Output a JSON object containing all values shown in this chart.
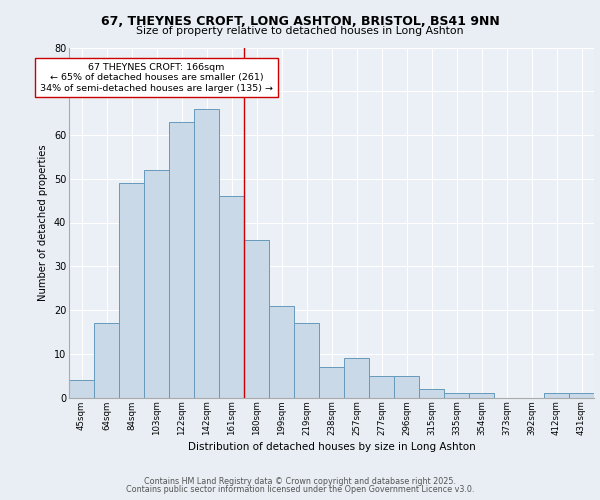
{
  "title1": "67, THEYNES CROFT, LONG ASHTON, BRISTOL, BS41 9NN",
  "title2": "Size of property relative to detached houses in Long Ashton",
  "xlabel": "Distribution of detached houses by size in Long Ashton",
  "ylabel": "Number of detached properties",
  "categories": [
    "45sqm",
    "64sqm",
    "84sqm",
    "103sqm",
    "122sqm",
    "142sqm",
    "161sqm",
    "180sqm",
    "199sqm",
    "219sqm",
    "238sqm",
    "257sqm",
    "277sqm",
    "296sqm",
    "315sqm",
    "335sqm",
    "354sqm",
    "373sqm",
    "392sqm",
    "412sqm",
    "431sqm"
  ],
  "values": [
    4,
    17,
    49,
    52,
    63,
    66,
    46,
    36,
    21,
    17,
    7,
    9,
    5,
    5,
    2,
    1,
    1,
    0,
    0,
    1,
    1
  ],
  "bar_color": "#c9d9e8",
  "bar_edge_color": "#6699bb",
  "property_label": "67 THEYNES CROFT: 166sqm",
  "annotation_line1": "← 65% of detached houses are smaller (261)",
  "annotation_line2": "34% of semi-detached houses are larger (135) →",
  "vline_color": "#cc0000",
  "vline_position": 6.5,
  "annotation_box_color": "#ffffff",
  "annotation_box_edgecolor": "#cc0000",
  "bg_color": "#e8eef4",
  "plot_bg_color": "#eaf0f6",
  "grid_color": "#ffffff",
  "ylim": [
    0,
    80
  ],
  "yticks": [
    0,
    10,
    20,
    30,
    40,
    50,
    60,
    70,
    80
  ],
  "footer1": "Contains HM Land Registry data © Crown copyright and database right 2025.",
  "footer2": "Contains public sector information licensed under the Open Government Licence v3.0."
}
